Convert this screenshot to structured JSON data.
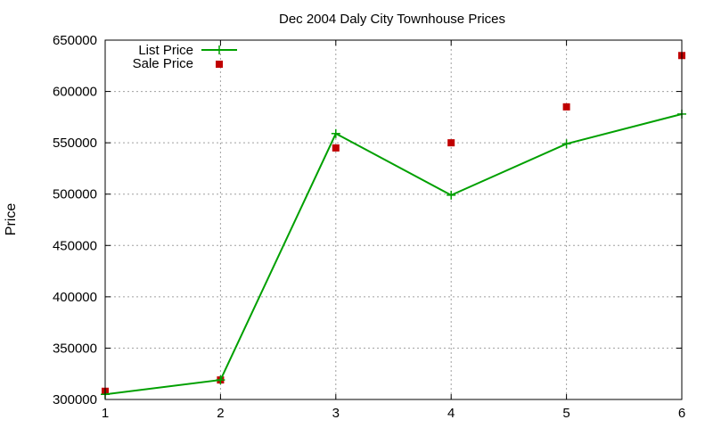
{
  "chart_data": {
    "type": "line",
    "title": "Dec 2004 Daly City Townhouse Prices",
    "xlabel": "",
    "ylabel": "Price",
    "x": [
      1,
      2,
      3,
      4,
      5,
      6
    ],
    "xlim": [
      1,
      6
    ],
    "ylim": [
      300000,
      650000
    ],
    "xticks": [
      "1",
      "2",
      "3",
      "4",
      "5",
      "6"
    ],
    "yticks": [
      "300000",
      "350000",
      "400000",
      "450000",
      "500000",
      "550000",
      "600000",
      "650000"
    ],
    "grid": true,
    "legend_position": "top-left",
    "series": [
      {
        "name": "List Price",
        "style": "line-with-plus-markers",
        "color": "#00a000",
        "values": [
          305000,
          319000,
          559000,
          499000,
          549000,
          578000
        ]
      },
      {
        "name": "Sale Price",
        "style": "square-markers",
        "color": "#c00000",
        "values": [
          308000,
          319000,
          545000,
          550000,
          585000,
          635000
        ]
      }
    ]
  }
}
